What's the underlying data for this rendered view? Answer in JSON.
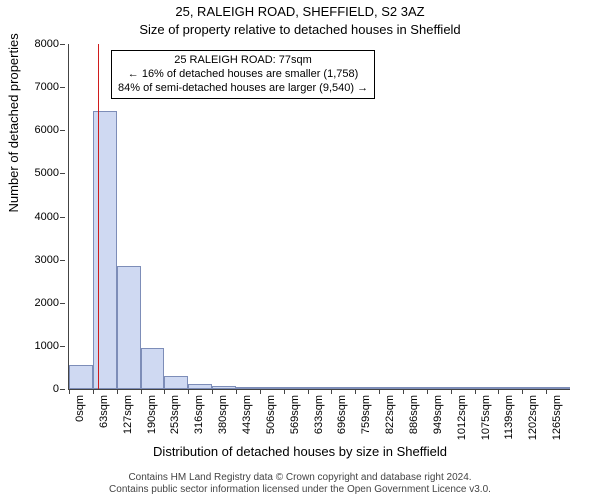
{
  "title": "25, RALEIGH ROAD, SHEFFIELD, S2 3AZ",
  "subtitle": "Size of property relative to detached houses in Sheffield",
  "ylabel": "Number of detached properties",
  "xlabel": "Distribution of detached houses by size in Sheffield",
  "footer_line1": "Contains HM Land Registry data © Crown copyright and database right 2024.",
  "footer_line2": "Contains public sector information licensed under the Open Government Licence v3.0.",
  "chart": {
    "type": "histogram",
    "background_color": "#ffffff",
    "axis_color": "#444444",
    "tick_fontsize": 11,
    "label_fontsize": 13,
    "title_fontsize": 13,
    "ylim": [
      0,
      8000
    ],
    "yticks": [
      0,
      1000,
      2000,
      3000,
      4000,
      5000,
      6000,
      7000,
      8000
    ],
    "bins": 21,
    "bin_width_sqm": 63.33,
    "xtick_labels": [
      "0sqm",
      "63sqm",
      "127sqm",
      "190sqm",
      "253sqm",
      "316sqm",
      "380sqm",
      "443sqm",
      "506sqm",
      "569sqm",
      "633sqm",
      "696sqm",
      "759sqm",
      "822sqm",
      "886sqm",
      "949sqm",
      "1012sqm",
      "1075sqm",
      "1139sqm",
      "1202sqm",
      "1265sqm"
    ],
    "values": [
      560,
      6450,
      2850,
      960,
      300,
      120,
      70,
      45,
      30,
      20,
      14,
      10,
      8,
      6,
      5,
      4,
      3,
      2,
      2,
      1,
      1
    ],
    "bar_fill": "#cfd9f2",
    "bar_border": "#7d8db8",
    "bar_border_width": 1,
    "marker": {
      "position_sqm": 77,
      "color": "#d01c1c",
      "width": 1.5
    },
    "annotation": {
      "line1": "25 RALEIGH ROAD: 77sqm",
      "line2": "← 16% of detached houses are smaller (1,758)",
      "line3": "84% of semi-detached houses are larger (9,540) →",
      "border_color": "#000000",
      "background": "#ffffff",
      "fontsize": 11
    }
  }
}
